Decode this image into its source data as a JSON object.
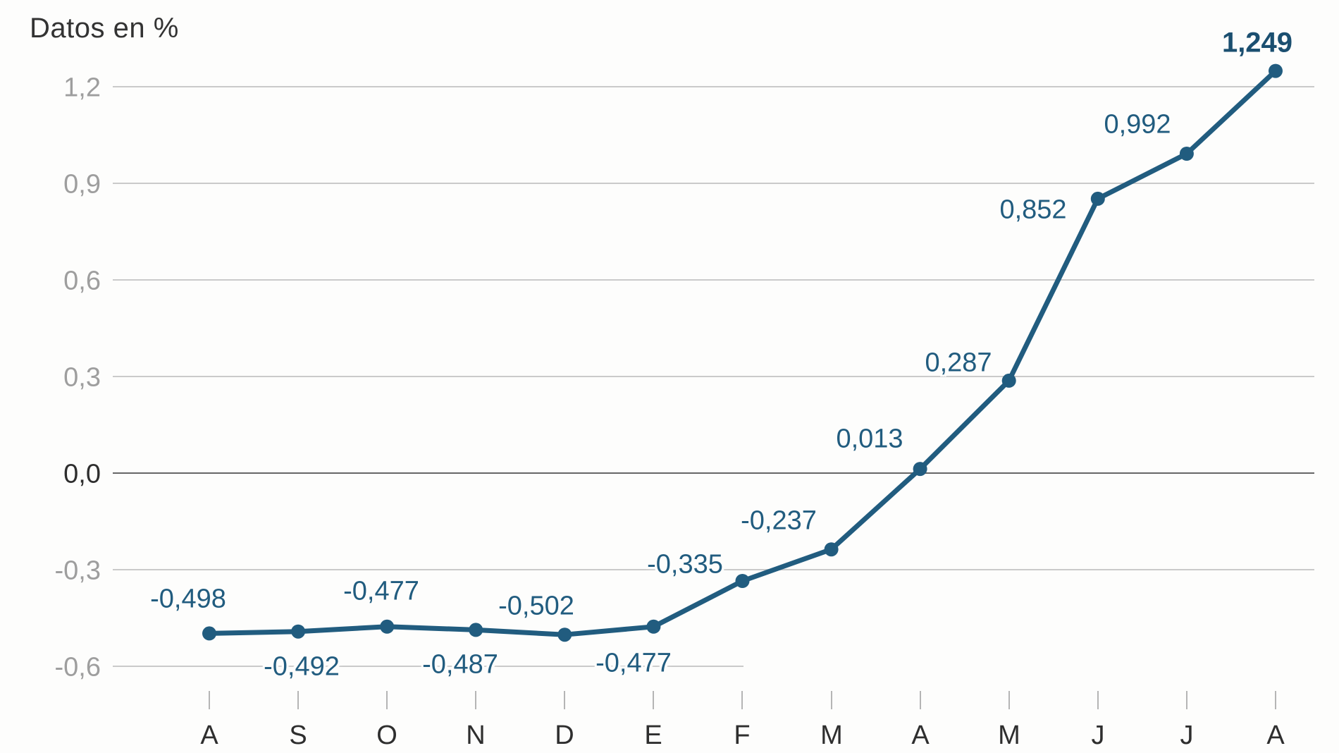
{
  "title": "Datos en %",
  "colors": {
    "line": "#215c7f",
    "point": "#215c7f",
    "data_label": "#215c7f",
    "emphasized_label": "#1b4f70",
    "grid": "#cacaca",
    "zero_grid": "#666666",
    "axis_label_gray": "#9e9e9e",
    "axis_label_dark": "#2e2e2e",
    "background": "#fdfdfc"
  },
  "chart_data": {
    "type": "line",
    "title": "Datos en %",
    "xlabel": "",
    "ylabel": "Datos en %",
    "categories": [
      "A",
      "S",
      "O",
      "N",
      "D",
      "E",
      "F",
      "M",
      "A",
      "M",
      "J",
      "J",
      "A"
    ],
    "values": [
      -0.498,
      -0.492,
      -0.477,
      -0.487,
      -0.502,
      -0.477,
      -0.335,
      -0.237,
      0.013,
      0.287,
      0.852,
      0.992,
      1.249
    ],
    "point_labels": [
      "-0,498",
      "-0,492",
      "-0,477",
      "-0,487",
      "-0,502",
      "-0,477",
      "-0,335",
      "-0,237",
      "0,013",
      "0,287",
      "0,852",
      "0,992",
      "1,249"
    ],
    "label_side": [
      "above",
      "below",
      "above",
      "below",
      "above",
      "below",
      "above",
      "above",
      "above",
      "above",
      "left",
      "above",
      "above"
    ],
    "emphasized_point": "1,249",
    "y_ticks": [
      {
        "label": "1,2",
        "value": 1.2
      },
      {
        "label": "0,9",
        "value": 0.9
      },
      {
        "label": "0,6",
        "value": 0.6
      },
      {
        "label": "0,3",
        "value": 0.3
      },
      {
        "label": "0,0",
        "value": 0.0
      },
      {
        "label": "-0,3",
        "value": -0.3
      },
      {
        "label": "-0,6",
        "value": -0.6
      }
    ],
    "ylim": [
      -0.72,
      1.32
    ],
    "grid": true,
    "legend": "none"
  }
}
